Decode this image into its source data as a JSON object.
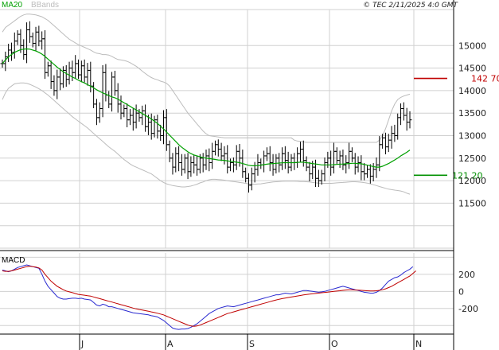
{
  "header": {
    "legend_ma": "MA20",
    "legend_bb": "BBands",
    "credit": "© TEC 2/11/2025 4:0 GMT"
  },
  "macd_panel": {
    "label": "MACD"
  },
  "colors": {
    "ma": "#00a000",
    "bb": "#bcbcbc",
    "price": "#000000",
    "grid": "#d0d0d0",
    "macd": "#2a2ad0",
    "signal": "#c00000",
    "resistance": "#c00000",
    "support": "#009000"
  },
  "chart_data": [
    {
      "type": "ohlc",
      "title": "",
      "ylim": [
        10500,
        15800
      ],
      "y_ticks": [
        11500,
        12000,
        12500,
        13000,
        13500,
        14000,
        14500,
        15000
      ],
      "x_labels": [
        "J",
        "A",
        "S",
        "O",
        "N"
      ],
      "levels": [
        {
          "value": 14270,
          "label": "142 70",
          "color": "#c00000"
        },
        {
          "value": 12120,
          "label": "121 20",
          "color": "#009000"
        }
      ],
      "close": [
        14600,
        14750,
        14900,
        14850,
        15100,
        15250,
        15000,
        14800,
        15350,
        15200,
        15050,
        15300,
        15100,
        15150,
        14400,
        14550,
        14200,
        14000,
        14300,
        14150,
        14450,
        14250,
        14500,
        14400,
        14600,
        14350,
        14550,
        14300,
        14450,
        14100,
        13700,
        13400,
        13600,
        14400,
        13900,
        13700,
        14300,
        14000,
        13700,
        13500,
        13600,
        13350,
        13450,
        13300,
        13500,
        13400,
        13550,
        13200,
        13300,
        13050,
        13350,
        13100,
        13000,
        13400,
        12800,
        12500,
        12300,
        12600,
        12400,
        12250,
        12500,
        12200,
        12400,
        12350,
        12250,
        12500,
        12350,
        12550,
        12400,
        12650,
        12800,
        12700,
        12550,
        12600,
        12300,
        12400,
        12350,
        12650,
        12500,
        12200,
        12050,
        11900,
        12150,
        12250,
        12400,
        12350,
        12550,
        12600,
        12400,
        12250,
        12500,
        12350,
        12600,
        12450,
        12300,
        12500,
        12400,
        12600,
        12700,
        12450,
        12300,
        12150,
        12300,
        12050,
        12000,
        12150,
        12400,
        12500,
        12300,
        12650,
        12450,
        12550,
        12350,
        12400,
        12650,
        12500,
        12300,
        12400,
        12200,
        12150,
        12250,
        12100,
        12250,
        12350,
        12800,
        12950,
        12750,
        12900,
        13050,
        13000,
        13400,
        13600,
        13450,
        13300,
        13350
      ],
      "ma20": [
        14600,
        14680,
        14750,
        14800,
        14850,
        14880,
        14910,
        14920,
        14925,
        14920,
        14900,
        14880,
        14850,
        14810,
        14760,
        14700,
        14640,
        14580,
        14520,
        14470,
        14420,
        14380,
        14340,
        14300,
        14270,
        14230,
        14200,
        14170,
        14130,
        14100,
        14060,
        14020,
        13980,
        13950,
        13920,
        13890,
        13860,
        13840,
        13810,
        13770,
        13730,
        13690,
        13650,
        13610,
        13570,
        13530,
        13490,
        13450,
        13410,
        13370,
        13320,
        13270,
        13210,
        13150,
        13080,
        13010,
        12940,
        12870,
        12800,
        12740,
        12690,
        12640,
        12600,
        12570,
        12550,
        12530,
        12510,
        12500,
        12490,
        12480,
        12470,
        12460,
        12455,
        12450,
        12440,
        12430,
        12420,
        12410,
        12400,
        12380,
        12360,
        12340,
        12330,
        12330,
        12335,
        12345,
        12355,
        12365,
        12375,
        12380,
        12385,
        12390,
        12395,
        12400,
        12400,
        12400,
        12400,
        12405,
        12410,
        12410,
        12400,
        12390,
        12380,
        12370,
        12360,
        12350,
        12350,
        12350,
        12350,
        12355,
        12360,
        12365,
        12370,
        12375,
        12380,
        12385,
        12385,
        12380,
        12375,
        12360,
        12345,
        12330,
        12310,
        12300,
        12300,
        12320,
        12350,
        12380,
        12420,
        12460,
        12500,
        12550,
        12590,
        12630,
        12680
      ],
      "bb_upper": [
        15300,
        15400,
        15450,
        15500,
        15550,
        15600,
        15650,
        15680,
        15700,
        15700,
        15690,
        15680,
        15660,
        15640,
        15600,
        15560,
        15500,
        15440,
        15380,
        15320,
        15260,
        15200,
        15140,
        15100,
        15060,
        15020,
        14990,
        14960,
        14930,
        14900,
        14860,
        14830,
        14820,
        14800,
        14800,
        14790,
        14760,
        14720,
        14690,
        14680,
        14670,
        14650,
        14620,
        14580,
        14540,
        14490,
        14430,
        14380,
        14330,
        14290,
        14260,
        14240,
        14210,
        14190,
        14160,
        14100,
        14000,
        13900,
        13800,
        13700,
        13600,
        13500,
        13420,
        13340,
        13260,
        13180,
        13100,
        13040,
        13000,
        12990,
        12980,
        12970,
        12960,
        12950,
        12950,
        12950,
        12950,
        12950,
        12950,
        12950,
        12950,
        12950,
        12950,
        12950,
        12950,
        12950,
        12950,
        12950,
        12950,
        12950,
        12950,
        12950,
        12950,
        12950,
        12950,
        12950,
        12900,
        12880,
        12870,
        12860,
        12850,
        12850,
        12850,
        12850,
        12850,
        12850,
        12850,
        12850,
        12850,
        12850,
        12850,
        12850,
        12850,
        12850,
        12850,
        12850,
        12850,
        12850,
        12850,
        12850,
        12850,
        12850,
        12850,
        12850,
        12900,
        13000,
        13150,
        13350,
        13550,
        13700,
        13800,
        13850,
        13880,
        13900,
        13920
      ],
      "bb_lower": [
        13800,
        13950,
        14050,
        14100,
        14150,
        14160,
        14170,
        14170,
        14160,
        14140,
        14110,
        14080,
        14040,
        14000,
        13950,
        13900,
        13840,
        13780,
        13720,
        13660,
        13600,
        13540,
        13480,
        13420,
        13370,
        13320,
        13270,
        13220,
        13170,
        13110,
        13050,
        12990,
        12930,
        12870,
        12810,
        12750,
        12700,
        12650,
        12590,
        12530,
        12470,
        12420,
        12370,
        12330,
        12300,
        12270,
        12240,
        12210,
        12180,
        12150,
        12100,
        12050,
        12000,
        11960,
        11930,
        11910,
        11890,
        11880,
        11870,
        11860,
        11860,
        11870,
        11880,
        11900,
        11920,
        11950,
        11970,
        12000,
        12020,
        12030,
        12030,
        12025,
        12020,
        12010,
        12000,
        11990,
        11980,
        11970,
        11960,
        11950,
        11940,
        11930,
        11920,
        11920,
        11925,
        11930,
        11940,
        11950,
        11960,
        11970,
        11975,
        11980,
        11985,
        11990,
        11990,
        11990,
        11990,
        11985,
        11980,
        11980,
        11975,
        11970,
        11960,
        11950,
        11945,
        11940,
        11940,
        11940,
        11940,
        11945,
        11950,
        11955,
        11960,
        11965,
        11970,
        11975,
        11975,
        11970,
        11965,
        11955,
        11945,
        11930,
        11910,
        11890,
        11870,
        11850,
        11830,
        11810,
        11800,
        11790,
        11780,
        11770,
        11750,
        11720,
        11700
      ]
    },
    {
      "type": "line",
      "title": "",
      "ylim": [
        -500,
        450
      ],
      "y_ticks": [
        -200,
        0,
        200
      ],
      "series": [
        {
          "name": "",
          "color": "#2a2ad0",
          "values": [
            250,
            240,
            230,
            240,
            260,
            280,
            290,
            300,
            310,
            300,
            290,
            280,
            270,
            200,
            120,
            60,
            20,
            -20,
            -60,
            -80,
            -90,
            -90,
            -85,
            -80,
            -80,
            -85,
            -80,
            -90,
            -95,
            -100,
            -130,
            -160,
            -170,
            -150,
            -160,
            -180,
            -180,
            -190,
            -200,
            -210,
            -220,
            -230,
            -240,
            -250,
            -255,
            -260,
            -265,
            -270,
            -275,
            -285,
            -290,
            -300,
            -320,
            -340,
            -370,
            -400,
            -430,
            -440,
            -445,
            -440,
            -440,
            -435,
            -420,
            -400,
            -380,
            -350,
            -320,
            -290,
            -260,
            -240,
            -220,
            -200,
            -190,
            -180,
            -170,
            -175,
            -180,
            -170,
            -160,
            -150,
            -140,
            -130,
            -120,
            -110,
            -100,
            -90,
            -80,
            -70,
            -60,
            -50,
            -40,
            -40,
            -30,
            -20,
            -25,
            -30,
            -20,
            -10,
            0,
            10,
            10,
            5,
            0,
            -5,
            -10,
            -5,
            0,
            10,
            20,
            30,
            40,
            50,
            60,
            50,
            40,
            30,
            20,
            10,
            0,
            -10,
            -15,
            -20,
            -20,
            -10,
            10,
            40,
            80,
            120,
            140,
            160,
            170,
            190,
            220,
            240,
            260,
            290
          ]
        },
        {
          "name": "",
          "color": "#c00000",
          "values": [
            240,
            235,
            235,
            240,
            250,
            260,
            270,
            280,
            290,
            295,
            290,
            285,
            275,
            250,
            200,
            160,
            120,
            90,
            60,
            40,
            20,
            5,
            -5,
            -15,
            -25,
            -35,
            -40,
            -45,
            -50,
            -55,
            -65,
            -75,
            -85,
            -95,
            -105,
            -115,
            -125,
            -135,
            -145,
            -155,
            -165,
            -175,
            -185,
            -195,
            -205,
            -212,
            -218,
            -225,
            -232,
            -240,
            -248,
            -256,
            -265,
            -275,
            -290,
            -305,
            -320,
            -335,
            -350,
            -365,
            -380,
            -395,
            -405,
            -410,
            -405,
            -395,
            -380,
            -365,
            -350,
            -335,
            -320,
            -305,
            -290,
            -275,
            -260,
            -250,
            -240,
            -230,
            -220,
            -210,
            -200,
            -190,
            -180,
            -170,
            -160,
            -150,
            -140,
            -130,
            -120,
            -110,
            -100,
            -92,
            -85,
            -78,
            -72,
            -66,
            -60,
            -54,
            -48,
            -42,
            -36,
            -32,
            -28,
            -24,
            -20,
            -16,
            -12,
            -8,
            -4,
            0,
            4,
            8,
            12,
            16,
            18,
            18,
            16,
            14,
            12,
            10,
            8,
            6,
            6,
            8,
            12,
            20,
            30,
            45,
            60,
            80,
            100,
            120,
            140,
            160,
            180,
            210,
            240
          ]
        }
      ]
    }
  ]
}
